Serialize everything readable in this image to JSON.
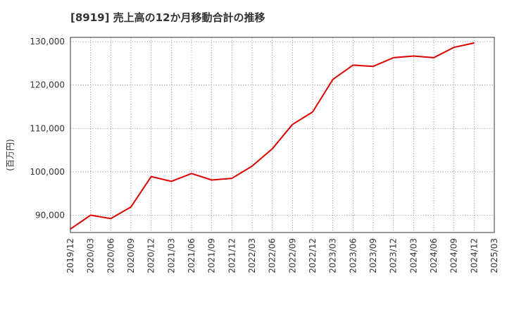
{
  "chart_data": {
    "type": "line",
    "title": "[8919]  売上高の12か月移動合計の推移",
    "ylabel": "(百万円)",
    "xlabel": "",
    "ylim": [
      86000,
      131000
    ],
    "yticks": [
      90000,
      100000,
      110000,
      120000,
      130000
    ],
    "ytick_labels": [
      "90,000",
      "100,000",
      "110,000",
      "120,000",
      "130,000"
    ],
    "xtick_labels": [
      "2019/12",
      "2020/03",
      "2020/06",
      "2020/09",
      "2020/12",
      "2021/03",
      "2021/06",
      "2021/09",
      "2021/12",
      "2022/03",
      "2022/06",
      "2022/09",
      "2022/12",
      "2023/03",
      "2023/06",
      "2023/09",
      "2023/12",
      "2024/03",
      "2024/06",
      "2024/09",
      "2024/12",
      "2025/03"
    ],
    "grid": true,
    "series": [
      {
        "name": "売上高(12か月移動合計)",
        "color": "#dd0000",
        "x": [
          "2019/12",
          "2020/03",
          "2020/06",
          "2020/09",
          "2020/12",
          "2021/03",
          "2021/06",
          "2021/09",
          "2021/12",
          "2022/03",
          "2022/06",
          "2022/09",
          "2022/12",
          "2023/03",
          "2023/06",
          "2023/09",
          "2023/12",
          "2024/03",
          "2024/06",
          "2024/09",
          "2024/12"
        ],
        "values": [
          86800,
          90000,
          89200,
          91900,
          98900,
          97800,
          99600,
          98100,
          98500,
          101300,
          105300,
          110900,
          113800,
          121300,
          124600,
          124300,
          126300,
          126700,
          126300,
          128700,
          129700
        ]
      }
    ]
  }
}
